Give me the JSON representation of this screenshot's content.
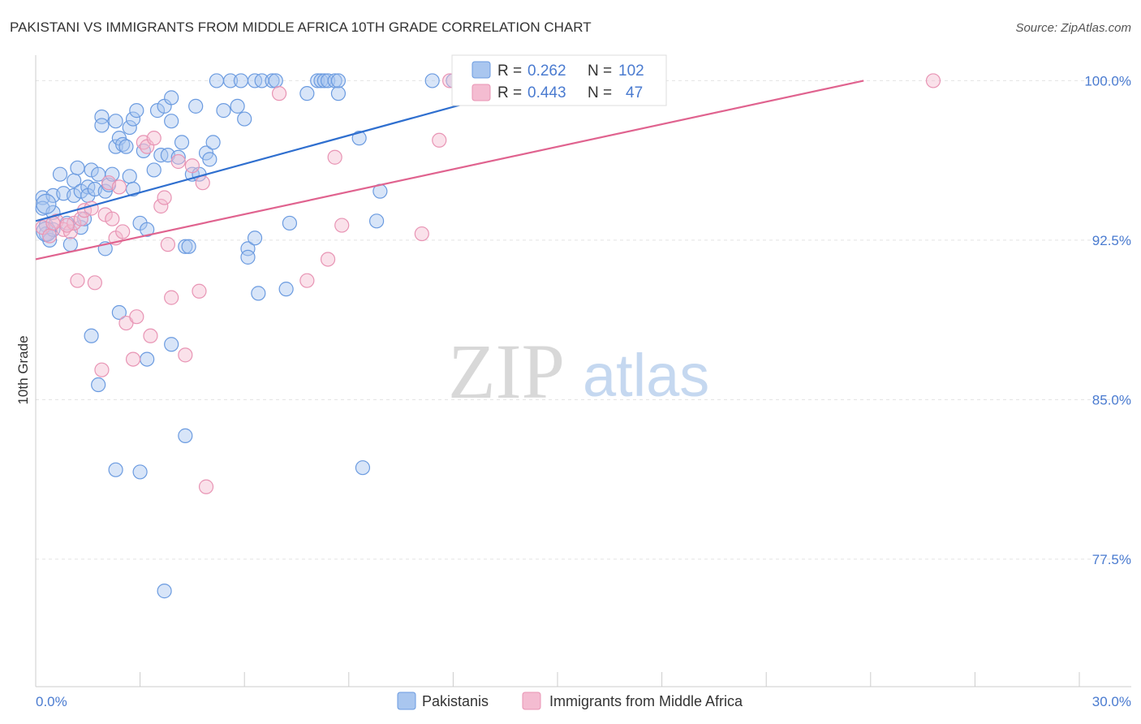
{
  "chart_data": {
    "type": "scatter",
    "title": "PAKISTANI VS IMMIGRANTS FROM MIDDLE AFRICA 10TH GRADE CORRELATION CHART",
    "source": "Source: ZipAtlas.com",
    "ylabel": "10th Grade",
    "xlabel": "",
    "xlim": [
      0,
      30
    ],
    "ylim": [
      71.5,
      101.2
    ],
    "y_ticks": [
      {
        "value": 100,
        "label": "100.0%"
      },
      {
        "value": 92.5,
        "label": "92.5%"
      },
      {
        "value": 85,
        "label": "85.0%"
      },
      {
        "value": 77.5,
        "label": "77.5%"
      }
    ],
    "x_ticks": [
      {
        "value": 0,
        "label": "0.0%"
      },
      {
        "value": 30,
        "label": "30.0%"
      }
    ],
    "grid": true,
    "legend_position": "bottom",
    "watermark": {
      "zip": "ZIP",
      "atlas": "atlas"
    },
    "stats_box": {
      "r_label": "R =",
      "n_label": "N =",
      "rows": [
        {
          "series": "Pakistanis",
          "r": "0.262",
          "n": "102"
        },
        {
          "series": "Immigrants from Middle Africa",
          "r": "0.443",
          "n": "47"
        }
      ]
    },
    "series": [
      {
        "name": "Pakistanis",
        "color": "#6b9be0",
        "fill": "#a9c6ef",
        "line_color": "#2f6fcf",
        "trend": {
          "x": [
            0,
            15.2
          ],
          "y": [
            93.4,
            100.2
          ]
        },
        "points": [
          [
            0.2,
            94.5
          ],
          [
            0.2,
            94.0
          ],
          [
            0.3,
            93.2
          ],
          [
            0.3,
            92.8
          ],
          [
            0.4,
            92.5
          ],
          [
            0.5,
            93.8
          ],
          [
            0.5,
            94.6
          ],
          [
            0.7,
            95.6
          ],
          [
            0.8,
            94.7
          ],
          [
            0.9,
            93.3
          ],
          [
            1.0,
            92.3
          ],
          [
            1.1,
            94.6
          ],
          [
            1.1,
            95.3
          ],
          [
            1.2,
            95.9
          ],
          [
            1.3,
            94.8
          ],
          [
            1.3,
            93.1
          ],
          [
            1.4,
            93.5
          ],
          [
            1.5,
            95.0
          ],
          [
            1.5,
            94.6
          ],
          [
            1.6,
            95.8
          ],
          [
            1.7,
            94.9
          ],
          [
            1.8,
            95.6
          ],
          [
            1.9,
            98.3
          ],
          [
            1.9,
            97.9
          ],
          [
            2.0,
            92.1
          ],
          [
            2.0,
            94.8
          ],
          [
            2.1,
            95.1
          ],
          [
            2.2,
            95.6
          ],
          [
            2.3,
            98.1
          ],
          [
            2.3,
            96.9
          ],
          [
            2.4,
            97.3
          ],
          [
            2.5,
            97.0
          ],
          [
            2.6,
            96.9
          ],
          [
            2.7,
            97.8
          ],
          [
            2.7,
            95.5
          ],
          [
            2.8,
            94.9
          ],
          [
            2.8,
            98.2
          ],
          [
            2.9,
            98.6
          ],
          [
            3.0,
            93.3
          ],
          [
            3.1,
            96.7
          ],
          [
            3.2,
            93.0
          ],
          [
            3.4,
            95.8
          ],
          [
            3.5,
            98.6
          ],
          [
            3.6,
            96.5
          ],
          [
            3.7,
            98.8
          ],
          [
            3.8,
            96.5
          ],
          [
            3.9,
            98.1
          ],
          [
            3.9,
            99.2
          ],
          [
            4.1,
            96.4
          ],
          [
            4.2,
            97.1
          ],
          [
            4.3,
            92.2
          ],
          [
            4.4,
            92.2
          ],
          [
            4.5,
            95.6
          ],
          [
            4.6,
            98.8
          ],
          [
            4.7,
            95.6
          ],
          [
            4.9,
            96.6
          ],
          [
            5.0,
            96.3
          ],
          [
            5.1,
            97.1
          ],
          [
            5.2,
            100.0
          ],
          [
            5.4,
            98.6
          ],
          [
            5.6,
            100.0
          ],
          [
            5.8,
            98.8
          ],
          [
            5.9,
            100.0
          ],
          [
            6.0,
            98.2
          ],
          [
            6.1,
            92.1
          ],
          [
            6.1,
            91.7
          ],
          [
            6.3,
            100.0
          ],
          [
            6.3,
            92.6
          ],
          [
            6.4,
            90.0
          ],
          [
            6.5,
            100.0
          ],
          [
            6.8,
            100.0
          ],
          [
            6.9,
            100.0
          ],
          [
            7.2,
            90.2
          ],
          [
            7.3,
            93.3
          ],
          [
            7.8,
            99.4
          ],
          [
            8.1,
            100.0
          ],
          [
            8.2,
            100.0
          ],
          [
            8.3,
            100.0
          ],
          [
            8.4,
            100.0
          ],
          [
            8.6,
            100.0
          ],
          [
            8.7,
            99.4
          ],
          [
            8.7,
            100.0
          ],
          [
            9.3,
            97.3
          ],
          [
            9.4,
            81.8
          ],
          [
            9.8,
            93.4
          ],
          [
            9.9,
            94.8
          ],
          [
            11.4,
            100.0
          ],
          [
            12.0,
            100.0
          ],
          [
            12.2,
            100.0
          ],
          [
            12.4,
            100.0
          ],
          [
            13.1,
            100.0
          ],
          [
            13.4,
            100.0
          ],
          [
            2.4,
            89.1
          ],
          [
            1.6,
            88.0
          ],
          [
            3.2,
            86.9
          ],
          [
            3.9,
            87.6
          ],
          [
            1.8,
            85.7
          ],
          [
            4.3,
            83.3
          ],
          [
            2.3,
            81.7
          ],
          [
            3.0,
            81.6
          ],
          [
            3.7,
            76.0
          ],
          [
            0.5,
            93.0
          ]
        ],
        "big_points": [
          [
            0.3,
            94.2
          ],
          [
            0.3,
            92.9
          ]
        ]
      },
      {
        "name": "Immigrants from Middle Africa",
        "color": "#e894b4",
        "fill": "#f4bcd1",
        "line_color": "#e0638f",
        "trend": {
          "x": [
            0,
            23.8
          ],
          "y": [
            91.6,
            100.0
          ]
        },
        "points": [
          [
            0.2,
            93.1
          ],
          [
            0.4,
            92.7
          ],
          [
            0.6,
            93.4
          ],
          [
            0.8,
            93.0
          ],
          [
            1.0,
            92.9
          ],
          [
            1.1,
            93.3
          ],
          [
            1.2,
            90.6
          ],
          [
            1.3,
            93.5
          ],
          [
            1.4,
            93.9
          ],
          [
            1.6,
            94.0
          ],
          [
            1.7,
            90.5
          ],
          [
            1.9,
            86.4
          ],
          [
            2.0,
            93.7
          ],
          [
            2.1,
            95.2
          ],
          [
            2.2,
            93.5
          ],
          [
            2.3,
            92.6
          ],
          [
            2.4,
            95.0
          ],
          [
            2.5,
            92.9
          ],
          [
            2.6,
            88.6
          ],
          [
            2.8,
            86.9
          ],
          [
            2.9,
            88.9
          ],
          [
            3.1,
            97.1
          ],
          [
            3.2,
            96.9
          ],
          [
            3.3,
            88.0
          ],
          [
            3.4,
            97.3
          ],
          [
            3.6,
            94.1
          ],
          [
            3.7,
            94.5
          ],
          [
            3.8,
            92.3
          ],
          [
            3.9,
            89.8
          ],
          [
            4.1,
            96.2
          ],
          [
            4.3,
            87.1
          ],
          [
            4.5,
            96.0
          ],
          [
            4.7,
            90.1
          ],
          [
            4.8,
            95.2
          ],
          [
            4.9,
            80.9
          ],
          [
            7.0,
            99.4
          ],
          [
            7.8,
            90.6
          ],
          [
            8.4,
            91.6
          ],
          [
            8.6,
            96.4
          ],
          [
            8.8,
            93.2
          ],
          [
            11.1,
            92.8
          ],
          [
            11.6,
            97.2
          ],
          [
            11.9,
            100.0
          ],
          [
            12.3,
            100.0
          ],
          [
            25.8,
            100.0
          ],
          [
            0.5,
            93.3
          ],
          [
            0.9,
            93.2
          ]
        ],
        "big_points": []
      }
    ]
  }
}
